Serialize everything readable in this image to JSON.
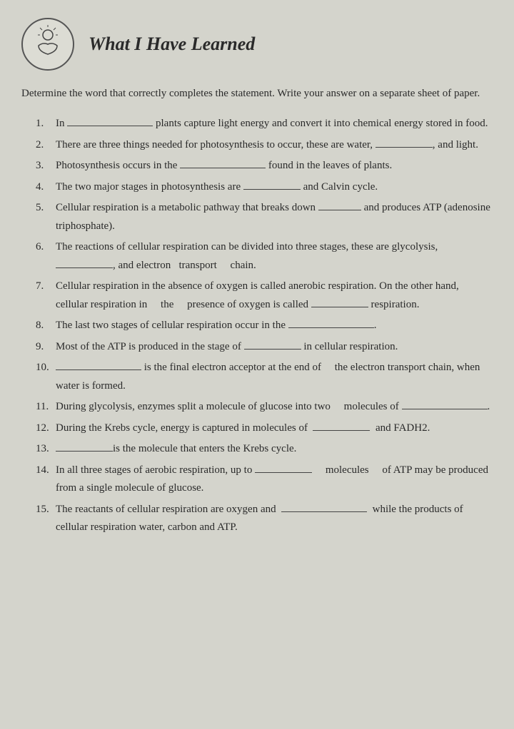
{
  "header": {
    "title": "What I Have Learned",
    "icon_name": "lightbulb-hand-icon"
  },
  "instructions": "Determine the word that correctly completes the statement. Write your answer on a separate sheet of paper.",
  "questions": [
    {
      "num": "1.",
      "text": "In ________________ plants capture light energy and convert it into chemical energy stored in food."
    },
    {
      "num": "2.",
      "text": "There are three things needed for photosynthesis to occur, these are water, __________, and light."
    },
    {
      "num": "3.",
      "text": "Photosynthesis occurs in the ______________ found in the leaves of plants."
    },
    {
      "num": "4.",
      "text": "The two major stages in photosynthesis are __________ and Calvin cycle."
    },
    {
      "num": "5.",
      "text": "Cellular respiration is a metabolic pathway that breaks down ______ and produces ATP (adenosine triphosphate)."
    },
    {
      "num": "6.",
      "text": "The reactions of cellular respiration can be divided into three stages, these are glycolysis, ____________, and electron   transport     chain."
    },
    {
      "num": "7.",
      "text": "Cellular respiration in the absence of oxygen is called anerobic respiration. On the other hand, cellular respiration in     the     presence of oxygen is called ____________ respiration."
    },
    {
      "num": "8.",
      "text": "The last two stages of cellular respiration occur in the ________________."
    },
    {
      "num": "9.",
      "text": "Most of the ATP is produced in the stage of __________ in cellular respiration."
    },
    {
      "num": "10.",
      "text": "________________ is the final electron acceptor at the end of     the electron transport chain, when water is formed."
    },
    {
      "num": "11.",
      "text": "During glycolysis, enzymes split a molecule of glucose into two     molecules of ______________."
    },
    {
      "num": "12.",
      "text": "During the Krebs cycle, energy is captured in molecules of  ________  and FADH2."
    },
    {
      "num": "13.",
      "text": "____________is the molecule that enters the Krebs cycle."
    },
    {
      "num": "14.",
      "text": "In all three stages of aerobic respiration, up to ________     molecules     of ATP may be produced from a single molecule of glucose."
    },
    {
      "num": "15.",
      "text": "The reactants of cellular respiration are oxygen and  ______________  while the products of cellular respiration water, carbon and ATP."
    }
  ],
  "colors": {
    "background": "#c8c8c0",
    "page": "#d4d4cc",
    "text": "#2a2a2a",
    "border": "#555"
  }
}
